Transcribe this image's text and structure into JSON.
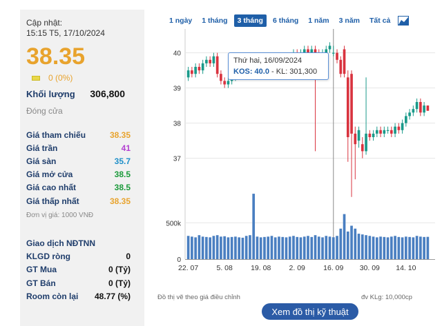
{
  "info": {
    "update_label": "Cập nhật:",
    "update_time": "15:15 T5, 17/10/2024",
    "price": "38.35",
    "change": "0 (0%)",
    "volume_label": "Khối lượng",
    "volume_value": "306,800",
    "status": "Đóng cửa",
    "colors": {
      "reference": "#e8a32d",
      "ceiling": "#b23fd1",
      "floor": "#1f8fc9",
      "up": "#1a9a3a"
    },
    "stats": [
      {
        "label": "Giá tham chiếu",
        "value": "38.35",
        "color": "#e8a32d"
      },
      {
        "label": "Giá trần",
        "value": "41",
        "color": "#b23fd1"
      },
      {
        "label": "Giá sàn",
        "value": "35.7",
        "color": "#1f8fc9"
      },
      {
        "label": "Giá mở cửa",
        "value": "38.5",
        "color": "#1a9a3a"
      },
      {
        "label": "Giá cao nhất",
        "value": "38.5",
        "color": "#1a9a3a"
      },
      {
        "label": "Giá thấp nhất",
        "value": "38.35",
        "color": "#e8a32d"
      }
    ],
    "unit_note": "Đơn vị giá: 1000 VNĐ",
    "foreign_title": "Giao dịch NĐTNN",
    "foreign": [
      {
        "label": "KLGD ròng",
        "value": "0"
      },
      {
        "label": "GT Mua",
        "value": "0 (Tỷ)"
      },
      {
        "label": "GT Bán",
        "value": "0 (Tỷ)"
      },
      {
        "label": "Room còn lại",
        "value": "48.77 (%)"
      }
    ]
  },
  "tabs": [
    "1 ngày",
    "1 tháng",
    "3 tháng",
    "6 tháng",
    "1 năm",
    "3 năm",
    "Tất cả"
  ],
  "active_tab": "3 tháng",
  "tooltip": {
    "date": "Thứ hai, 16/09/2024",
    "code": "KOS: 40.0",
    "rest": " - KL: 301,300"
  },
  "chart_note": "Đồ thị vẽ theo giá điều chỉnh",
  "volume_unit": "đv KLg: 10,000cp",
  "tech_button": "Xem đồ thị kỹ thuật",
  "chart_data": {
    "type": "candlestick",
    "up_color": "#1a9a8a",
    "down_color": "#d9333f",
    "price_axis": {
      "ticks": [
        "40",
        "39",
        "38",
        "37"
      ],
      "values": [
        40,
        39,
        38,
        37
      ],
      "ylim": [
        36.6,
        40.6
      ]
    },
    "volume_axis": {
      "ticks": [
        "500k",
        "0"
      ],
      "values": [
        500000,
        0
      ],
      "ylim": [
        0,
        1100000
      ]
    },
    "x_ticks": [
      "22. 07",
      "5. 08",
      "19. 08",
      "2. 09",
      "16. 09",
      "30. 09",
      "14. 10"
    ],
    "x_tick_index": [
      0,
      10,
      20,
      30,
      40,
      50,
      60
    ],
    "crosshair_index": 40,
    "candles": [
      {
        "o": 39.3,
        "c": 39.5,
        "h": 39.6,
        "l": 39.2,
        "v": 320000
      },
      {
        "o": 39.5,
        "c": 39.4,
        "h": 39.6,
        "l": 39.3,
        "v": 310000
      },
      {
        "o": 39.4,
        "c": 39.6,
        "h": 39.7,
        "l": 39.3,
        "v": 300000
      },
      {
        "o": 39.6,
        "c": 39.5,
        "h": 39.7,
        "l": 39.4,
        "v": 330000
      },
      {
        "o": 39.5,
        "c": 39.7,
        "h": 39.8,
        "l": 39.4,
        "v": 310000
      },
      {
        "o": 39.7,
        "c": 39.8,
        "h": 39.9,
        "l": 39.6,
        "v": 305000
      },
      {
        "o": 39.8,
        "c": 39.7,
        "h": 39.9,
        "l": 39.6,
        "v": 300000
      },
      {
        "o": 39.7,
        "c": 39.9,
        "h": 40.0,
        "l": 39.6,
        "v": 320000
      },
      {
        "o": 39.9,
        "c": 39.4,
        "h": 40.0,
        "l": 39.3,
        "v": 330000
      },
      {
        "o": 39.4,
        "c": 39.2,
        "h": 39.5,
        "l": 39.1,
        "v": 310000
      },
      {
        "o": 39.2,
        "c": 39.1,
        "h": 39.3,
        "l": 39.0,
        "v": 315000
      },
      {
        "o": 39.1,
        "c": 39.2,
        "h": 39.3,
        "l": 39.0,
        "v": 300000
      },
      {
        "o": 39.2,
        "c": 39.3,
        "h": 39.4,
        "l": 39.1,
        "v": 305000
      },
      {
        "o": 39.3,
        "c": 39.4,
        "h": 39.5,
        "l": 39.2,
        "v": 310000
      },
      {
        "o": 39.4,
        "c": 39.5,
        "h": 39.6,
        "l": 39.3,
        "v": 300000
      },
      {
        "o": 39.5,
        "c": 39.5,
        "h": 39.6,
        "l": 39.4,
        "v": 295000
      },
      {
        "o": 39.5,
        "c": 39.6,
        "h": 39.7,
        "l": 39.4,
        "v": 320000
      },
      {
        "o": 39.6,
        "c": 39.6,
        "h": 39.7,
        "l": 39.5,
        "v": 330000
      },
      {
        "o": 39.6,
        "c": 39.7,
        "h": 39.8,
        "l": 39.5,
        "v": 900000
      },
      {
        "o": 39.7,
        "c": 39.7,
        "h": 39.8,
        "l": 39.6,
        "v": 310000
      },
      {
        "o": 39.7,
        "c": 39.8,
        "h": 39.9,
        "l": 39.6,
        "v": 300000
      },
      {
        "o": 39.8,
        "c": 39.8,
        "h": 39.9,
        "l": 39.7,
        "v": 305000
      },
      {
        "o": 39.8,
        "c": 39.7,
        "h": 39.9,
        "l": 39.6,
        "v": 310000
      },
      {
        "o": 39.7,
        "c": 39.8,
        "h": 39.9,
        "l": 39.6,
        "v": 320000
      },
      {
        "o": 39.8,
        "c": 39.9,
        "h": 40.0,
        "l": 39.7,
        "v": 300000
      },
      {
        "o": 39.9,
        "c": 39.8,
        "h": 40.0,
        "l": 39.7,
        "v": 310000
      },
      {
        "o": 39.8,
        "c": 39.7,
        "h": 39.9,
        "l": 39.6,
        "v": 305000
      },
      {
        "o": 39.7,
        "c": 39.8,
        "h": 39.9,
        "l": 39.6,
        "v": 300000
      },
      {
        "o": 39.8,
        "c": 39.9,
        "h": 40.0,
        "l": 39.7,
        "v": 310000
      },
      {
        "o": 39.9,
        "c": 40.0,
        "h": 40.1,
        "l": 39.8,
        "v": 320000
      },
      {
        "o": 40.0,
        "c": 39.9,
        "h": 40.1,
        "l": 39.8,
        "v": 305000
      },
      {
        "o": 39.9,
        "c": 40.0,
        "h": 40.1,
        "l": 39.8,
        "v": 300000
      },
      {
        "o": 40.0,
        "c": 40.1,
        "h": 40.2,
        "l": 39.9,
        "v": 310000
      },
      {
        "o": 40.1,
        "c": 40.0,
        "h": 40.2,
        "l": 39.9,
        "v": 320000
      },
      {
        "o": 40.0,
        "c": 40.1,
        "h": 40.2,
        "l": 39.9,
        "v": 305000
      },
      {
        "o": 40.1,
        "c": 40.0,
        "h": 40.2,
        "l": 37.2,
        "v": 330000
      },
      {
        "o": 40.0,
        "c": 39.9,
        "h": 40.1,
        "l": 39.8,
        "v": 310000
      },
      {
        "o": 39.9,
        "c": 40.0,
        "h": 40.1,
        "l": 39.8,
        "v": 300000
      },
      {
        "o": 40.0,
        "c": 40.1,
        "h": 40.2,
        "l": 39.9,
        "v": 320000
      },
      {
        "o": 40.1,
        "c": 40.2,
        "h": 40.3,
        "l": 40.0,
        "v": 310000
      },
      {
        "o": 40.0,
        "c": 40.0,
        "h": 40.2,
        "l": 39.9,
        "v": 301300
      },
      {
        "o": 40.0,
        "c": 39.8,
        "h": 40.1,
        "l": 39.7,
        "v": 320000
      },
      {
        "o": 39.8,
        "c": 39.4,
        "h": 39.9,
        "l": 39.3,
        "v": 420000
      },
      {
        "o": 40.1,
        "c": 39.4,
        "h": 40.2,
        "l": 39.3,
        "v": 620000
      },
      {
        "o": 39.3,
        "c": 37.6,
        "h": 39.5,
        "l": 36.9,
        "v": 380000
      },
      {
        "o": 39.4,
        "c": 37.7,
        "h": 39.5,
        "l": 35.9,
        "v": 460000
      },
      {
        "o": 37.7,
        "c": 37.4,
        "h": 37.9,
        "l": 36.4,
        "v": 420000
      },
      {
        "o": 37.5,
        "c": 37.8,
        "h": 37.9,
        "l": 37.3,
        "v": 350000
      },
      {
        "o": 37.4,
        "c": 37.2,
        "h": 37.6,
        "l": 37.0,
        "v": 340000
      },
      {
        "o": 37.2,
        "c": 37.7,
        "h": 39.3,
        "l": 37.1,
        "v": 330000
      },
      {
        "o": 37.7,
        "c": 37.6,
        "h": 37.8,
        "l": 37.5,
        "v": 320000
      },
      {
        "o": 37.6,
        "c": 37.7,
        "h": 37.8,
        "l": 37.5,
        "v": 310000
      },
      {
        "o": 37.7,
        "c": 37.8,
        "h": 37.9,
        "l": 37.6,
        "v": 300000
      },
      {
        "o": 37.8,
        "c": 37.7,
        "h": 37.9,
        "l": 37.6,
        "v": 310000
      },
      {
        "o": 37.7,
        "c": 37.8,
        "h": 37.9,
        "l": 37.6,
        "v": 305000
      },
      {
        "o": 37.8,
        "c": 37.8,
        "h": 37.9,
        "l": 37.7,
        "v": 300000
      },
      {
        "o": 37.8,
        "c": 37.7,
        "h": 37.9,
        "l": 37.6,
        "v": 310000
      },
      {
        "o": 37.7,
        "c": 37.9,
        "h": 38.0,
        "l": 37.6,
        "v": 320000
      },
      {
        "o": 37.9,
        "c": 37.8,
        "h": 38.0,
        "l": 37.7,
        "v": 305000
      },
      {
        "o": 37.8,
        "c": 38.0,
        "h": 38.1,
        "l": 37.7,
        "v": 300000
      },
      {
        "o": 38.0,
        "c": 38.2,
        "h": 38.3,
        "l": 37.9,
        "v": 310000
      },
      {
        "o": 38.2,
        "c": 38.3,
        "h": 38.4,
        "l": 38.1,
        "v": 305000
      },
      {
        "o": 38.3,
        "c": 38.4,
        "h": 38.5,
        "l": 38.2,
        "v": 300000
      },
      {
        "o": 38.4,
        "c": 38.6,
        "h": 38.7,
        "l": 38.3,
        "v": 320000
      },
      {
        "o": 38.6,
        "c": 38.3,
        "h": 38.7,
        "l": 38.2,
        "v": 310000
      },
      {
        "o": 38.3,
        "c": 38.5,
        "h": 38.6,
        "l": 38.2,
        "v": 305000
      },
      {
        "o": 38.5,
        "c": 38.35,
        "h": 38.5,
        "l": 38.35,
        "v": 306800
      }
    ]
  }
}
